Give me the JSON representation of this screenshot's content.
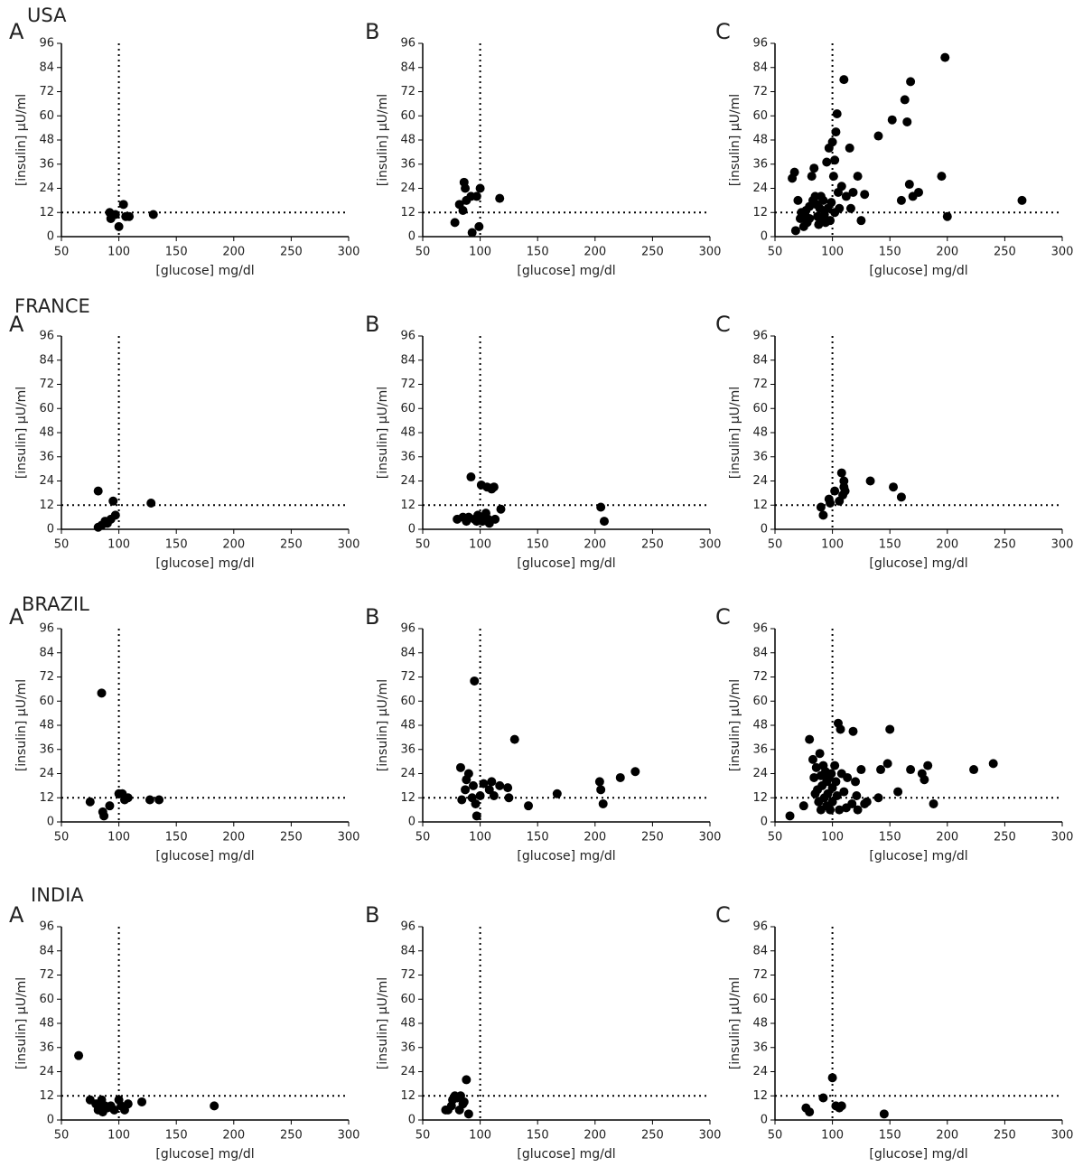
{
  "headings": [
    "USA",
    "FRANCE",
    "BRAZIL",
    "INDIA"
  ],
  "chart_data": [
    {
      "type": "scatter",
      "title": "A",
      "xlabel": "[glucose] mg/dl",
      "ylabel": "[insulin] μU/ml",
      "color": "#000000",
      "xlim": [
        50,
        300
      ],
      "ylim": [
        0,
        96
      ],
      "xticks": [
        50,
        100,
        150,
        200,
        250,
        300
      ],
      "yticks": [
        0,
        12,
        24,
        36,
        48,
        60,
        72,
        84,
        96
      ],
      "vline": 100,
      "hline": 12,
      "x": [
        92,
        93,
        97,
        100,
        104,
        106,
        109,
        130
      ],
      "y": [
        12,
        9,
        11,
        5,
        16,
        10,
        10,
        11
      ]
    },
    {
      "type": "scatter",
      "title": "B",
      "xlabel": "[glucose] mg/dl",
      "ylabel": "[insulin] μU/ml",
      "color": "#000000",
      "xlim": [
        50,
        300
      ],
      "ylim": [
        0,
        96
      ],
      "xticks": [
        50,
        100,
        150,
        200,
        250,
        300
      ],
      "yticks": [
        0,
        12,
        24,
        36,
        48,
        60,
        72,
        84,
        96
      ],
      "vline": 100,
      "hline": 12,
      "x": [
        78,
        82,
        85,
        86,
        87,
        88,
        92,
        93,
        97,
        99,
        100,
        117
      ],
      "y": [
        7,
        16,
        13,
        27,
        24,
        18,
        20,
        2,
        20,
        5,
        24,
        19
      ]
    },
    {
      "type": "scatter",
      "title": "C",
      "xlabel": "[glucose] mg/dl",
      "ylabel": "[insulin] μU/ml",
      "color": "#000000",
      "xlim": [
        50,
        300
      ],
      "ylim": [
        0,
        96
      ],
      "xticks": [
        50,
        100,
        150,
        200,
        250,
        300
      ],
      "yticks": [
        0,
        12,
        24,
        36,
        48,
        60,
        72,
        84,
        96
      ],
      "vline": 100,
      "hline": 12,
      "x": [
        65,
        67,
        68,
        70,
        72,
        73,
        75,
        76,
        77,
        78,
        80,
        80,
        82,
        83,
        84,
        85,
        86,
        87,
        88,
        89,
        90,
        91,
        92,
        93,
        94,
        95,
        96,
        97,
        98,
        99,
        100,
        101,
        102,
        102,
        103,
        104,
        105,
        106,
        108,
        110,
        112,
        115,
        116,
        118,
        122,
        125,
        128,
        140,
        152,
        160,
        163,
        165,
        167,
        168,
        170,
        175,
        195,
        198,
        200,
        265
      ],
      "y": [
        29,
        32,
        3,
        18,
        9,
        12,
        5,
        11,
        13,
        7,
        15,
        9,
        30,
        18,
        34,
        20,
        16,
        10,
        6,
        14,
        20,
        8,
        18,
        11,
        7,
        37,
        14,
        44,
        8,
        17,
        47,
        30,
        12,
        38,
        52,
        61,
        22,
        14,
        25,
        78,
        20,
        44,
        14,
        22,
        30,
        8,
        21,
        50,
        58,
        18,
        68,
        57,
        26,
        77,
        20,
        22,
        30,
        89,
        10,
        18
      ]
    },
    {
      "type": "scatter",
      "title": "A",
      "xlabel": "[glucose] mg/dl",
      "ylabel": "[insulin] μU/ml",
      "color": "#000000",
      "xlim": [
        50,
        300
      ],
      "ylim": [
        0,
        96
      ],
      "xticks": [
        50,
        100,
        150,
        200,
        250,
        300
      ],
      "yticks": [
        0,
        12,
        24,
        36,
        48,
        60,
        72,
        84,
        96
      ],
      "vline": 100,
      "hline": 12,
      "x": [
        82,
        82,
        85,
        88,
        90,
        93,
        95,
        97,
        128
      ],
      "y": [
        19,
        1,
        2,
        4,
        3,
        5,
        14,
        7,
        13
      ]
    },
    {
      "type": "scatter",
      "title": "B",
      "xlabel": "[glucose] mg/dl",
      "ylabel": "[insulin] μU/ml",
      "color": "#000000",
      "xlim": [
        50,
        300
      ],
      "ylim": [
        0,
        96
      ],
      "xticks": [
        50,
        100,
        150,
        200,
        250,
        300
      ],
      "yticks": [
        0,
        12,
        24,
        36,
        48,
        60,
        72,
        84,
        96
      ],
      "vline": 100,
      "hline": 12,
      "x": [
        80,
        85,
        88,
        90,
        92,
        95,
        97,
        98,
        100,
        101,
        102,
        103,
        105,
        106,
        107,
        108,
        110,
        112,
        113,
        118,
        205,
        208
      ],
      "y": [
        5,
        6,
        4,
        6,
        26,
        5,
        4,
        7,
        6,
        22,
        4,
        5,
        8,
        21,
        5,
        3,
        20,
        21,
        5,
        10,
        11,
        4
      ]
    },
    {
      "type": "scatter",
      "title": "C",
      "xlabel": "[glucose] mg/dl",
      "ylabel": "[insulin] μU/ml",
      "color": "#000000",
      "xlim": [
        50,
        300
      ],
      "ylim": [
        0,
        96
      ],
      "xticks": [
        50,
        100,
        150,
        200,
        250,
        300
      ],
      "yticks": [
        0,
        12,
        24,
        36,
        48,
        60,
        72,
        84,
        96
      ],
      "vline": 100,
      "hline": 12,
      "x": [
        90,
        92,
        97,
        98,
        102,
        106,
        108,
        109,
        110,
        110,
        111,
        133,
        153,
        160
      ],
      "y": [
        11,
        7,
        15,
        13,
        19,
        14,
        28,
        17,
        24,
        21,
        19,
        24,
        21,
        16
      ]
    },
    {
      "type": "scatter",
      "title": "A",
      "xlabel": "[glucose] mg/dl",
      "ylabel": "[insulin] μU/ml",
      "color": "#000000",
      "xlim": [
        50,
        300
      ],
      "ylim": [
        0,
        96
      ],
      "xticks": [
        50,
        100,
        150,
        200,
        250,
        300
      ],
      "yticks": [
        0,
        12,
        24,
        36,
        48,
        60,
        72,
        84,
        96
      ],
      "vline": 100,
      "hline": 12,
      "x": [
        75,
        85,
        86,
        87,
        92,
        100,
        103,
        105,
        108,
        127,
        135
      ],
      "y": [
        10,
        64,
        5,
        3,
        8,
        14,
        14,
        11,
        12,
        11,
        11
      ]
    },
    {
      "type": "scatter",
      "title": "B",
      "xlabel": "[glucose] mg/dl",
      "ylabel": "[insulin] μU/ml",
      "color": "#000000",
      "xlim": [
        50,
        300
      ],
      "ylim": [
        0,
        96
      ],
      "xticks": [
        50,
        100,
        150,
        200,
        250,
        300
      ],
      "yticks": [
        0,
        12,
        24,
        36,
        48,
        60,
        72,
        84,
        96
      ],
      "vline": 100,
      "hline": 12,
      "x": [
        83,
        84,
        87,
        88,
        90,
        93,
        94,
        95,
        96,
        97,
        100,
        103,
        108,
        110,
        112,
        117,
        124,
        125,
        130,
        142,
        167,
        204,
        205,
        207,
        222,
        235
      ],
      "y": [
        27,
        11,
        16,
        21,
        24,
        12,
        18,
        70,
        9,
        3,
        13,
        19,
        16,
        20,
        13,
        18,
        17,
        12,
        41,
        8,
        14,
        20,
        16,
        9,
        22,
        25
      ]
    },
    {
      "type": "scatter",
      "title": "C",
      "xlabel": "[glucose] mg/dl",
      "ylabel": "[insulin] μU/ml",
      "color": "#000000",
      "xlim": [
        50,
        300
      ],
      "ylim": [
        0,
        96
      ],
      "xticks": [
        50,
        100,
        150,
        200,
        250,
        300
      ],
      "yticks": [
        0,
        12,
        24,
        36,
        48,
        60,
        72,
        84,
        96
      ],
      "vline": 100,
      "hline": 12,
      "x": [
        63,
        75,
        80,
        83,
        84,
        85,
        86,
        87,
        88,
        89,
        90,
        90,
        91,
        92,
        93,
        94,
        95,
        95,
        96,
        97,
        98,
        99,
        100,
        100,
        102,
        103,
        104,
        105,
        106,
        107,
        108,
        110,
        112,
        113,
        117,
        118,
        120,
        121,
        122,
        125,
        128,
        130,
        140,
        142,
        148,
        150,
        157,
        168,
        178,
        180,
        183,
        188,
        223,
        240
      ],
      "y": [
        3,
        8,
        41,
        31,
        22,
        14,
        27,
        16,
        10,
        34,
        23,
        6,
        18,
        28,
        12,
        25,
        8,
        20,
        14,
        22,
        6,
        24,
        10,
        17,
        28,
        20,
        13,
        49,
        6,
        46,
        24,
        15,
        7,
        22,
        9,
        45,
        20,
        13,
        6,
        26,
        9,
        10,
        12,
        26,
        29,
        46,
        15,
        26,
        24,
        21,
        28,
        9,
        26,
        29
      ]
    },
    {
      "type": "scatter",
      "title": "A",
      "xlabel": "[glucose] mg/dl",
      "ylabel": "[insulin] μU/ml",
      "color": "#000000",
      "xlim": [
        50,
        300
      ],
      "ylim": [
        0,
        96
      ],
      "xticks": [
        50,
        100,
        150,
        200,
        250,
        300
      ],
      "yticks": [
        0,
        12,
        24,
        36,
        48,
        60,
        72,
        84,
        96
      ],
      "vline": 100,
      "hline": 12,
      "x": [
        65,
        75,
        80,
        82,
        83,
        85,
        86,
        88,
        90,
        93,
        96,
        100,
        102,
        105,
        108,
        120,
        183
      ],
      "y": [
        32,
        10,
        8,
        5,
        6,
        10,
        4,
        7,
        6,
        7,
        5,
        10,
        7,
        5,
        8,
        9,
        7
      ]
    },
    {
      "type": "scatter",
      "title": "B",
      "xlabel": "[glucose] mg/dl",
      "ylabel": "[insulin] μU/ml",
      "color": "#000000",
      "xlim": [
        50,
        300
      ],
      "ylim": [
        0,
        96
      ],
      "xticks": [
        50,
        100,
        150,
        200,
        250,
        300
      ],
      "yticks": [
        0,
        12,
        24,
        36,
        48,
        60,
        72,
        84,
        96
      ],
      "vline": 100,
      "hline": 12,
      "x": [
        70,
        72,
        75,
        76,
        78,
        80,
        82,
        83,
        85,
        86,
        88,
        90
      ],
      "y": [
        5,
        5,
        7,
        10,
        12,
        11,
        5,
        12,
        8,
        9,
        20,
        3
      ]
    },
    {
      "type": "scatter",
      "title": "C",
      "xlabel": "[glucose] mg/dl",
      "ylabel": "[insulin] μU/ml",
      "color": "#000000",
      "xlim": [
        50,
        300
      ],
      "ylim": [
        0,
        96
      ],
      "xticks": [
        50,
        100,
        150,
        200,
        250,
        300
      ],
      "yticks": [
        0,
        12,
        24,
        36,
        48,
        60,
        72,
        84,
        96
      ],
      "vline": 100,
      "hline": 12,
      "x": [
        77,
        80,
        92,
        100,
        103,
        106,
        108,
        145
      ],
      "y": [
        6,
        4,
        11,
        21,
        7,
        6,
        7,
        3
      ]
    }
  ]
}
